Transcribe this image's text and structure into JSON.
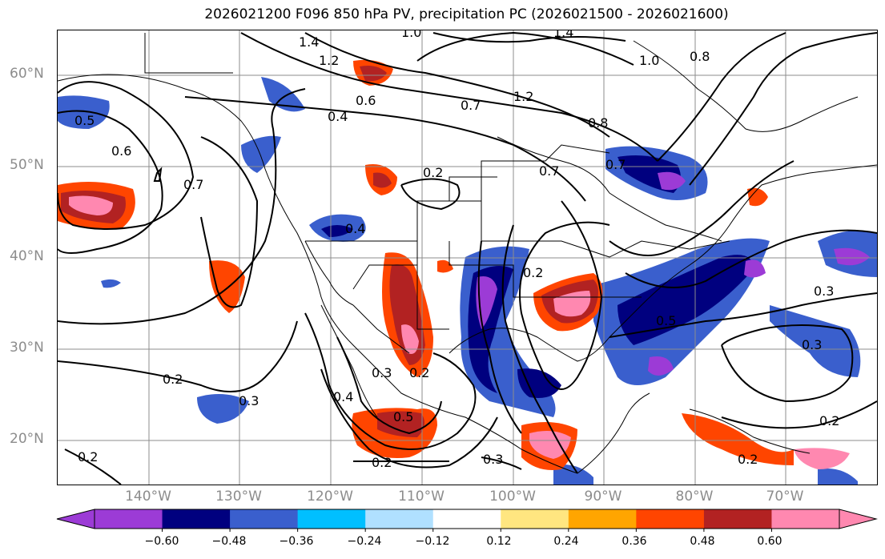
{
  "title": "2026021200 F096 850 hPa PV, precipitation PC (2026021500 - 2026021600)",
  "lat_labels": [
    "60°N",
    "50°N",
    "40°N",
    "30°N",
    "20°N"
  ],
  "lon_labels": [
    "140°W",
    "130°W",
    "120°W",
    "110°W",
    "100°W",
    "90°W",
    "80°W",
    "70°W"
  ],
  "contour_labels": [
    "1.0",
    "1.4",
    "1.2",
    "1.4",
    "0.6",
    "0.4",
    "1.2",
    "0.7",
    "1.0",
    "0.8",
    "0.7",
    "0.8",
    "0.5",
    "0.6",
    "0.7",
    "0.2",
    "0.7",
    "0.4",
    "0.2",
    "0.3",
    "0.5",
    "0.3",
    "0.4",
    "0.2",
    "0.3",
    "0.3",
    "0.2",
    "0.2",
    "0.2",
    "0.3",
    "0.2",
    "0.5",
    "0.2"
  ],
  "colorbar": {
    "ticks": [
      "−0.60",
      "−0.48",
      "−0.36",
      "−0.24",
      "−0.12",
      "0.12",
      "0.24",
      "0.36",
      "0.48",
      "0.60"
    ],
    "colors": [
      "#9c3bd6",
      "#00007f",
      "#3a5fcd",
      "#00bfff",
      "#b0e0ff",
      "#ffffff",
      "#ffe680",
      "#ffa500",
      "#ff4500",
      "#b22222",
      "#ff88b0",
      "#ff88b0"
    ],
    "extend_low_color": "#9c3bd6",
    "extend_high_color": "#ff88b0"
  },
  "colors": {
    "purple": "#9c3bd6",
    "navy": "#00007f",
    "blue": "#3a5fcd",
    "skyblue": "#00bfff",
    "pale_blue": "#b0e0ff",
    "yellow": "#ffe680",
    "orange": "#ffa500",
    "red_orange": "#ff4500",
    "dark_red": "#b22222",
    "pink": "#ff88b0",
    "grid": "#8c8c8c"
  }
}
